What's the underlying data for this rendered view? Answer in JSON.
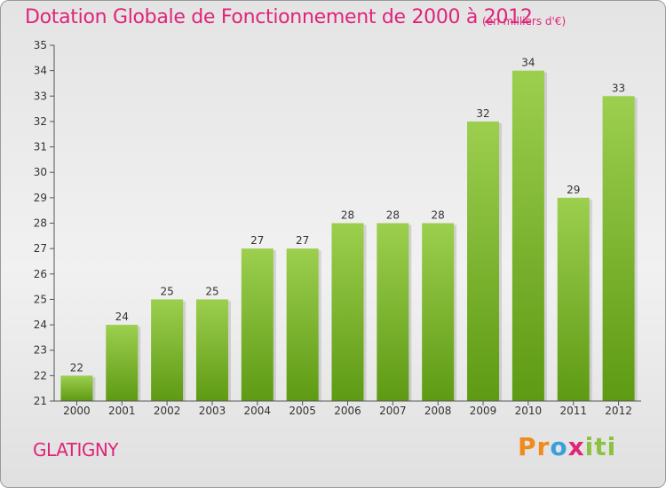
{
  "title": "Dotation Globale de Fonctionnement de 2000 à 2012",
  "subtitle": "(en milliers d'€)",
  "commune": "GLATIGNY",
  "brand": {
    "letters": [
      "Pr",
      "o",
      "x",
      "iti"
    ]
  },
  "colors": {
    "bar_top": "#9ccf4e",
    "bar_bottom": "#5e9a14",
    "title": "#e0247a",
    "axis": "#555555"
  },
  "chart_data": {
    "type": "bar",
    "categories": [
      "2000",
      "2001",
      "2002",
      "2003",
      "2004",
      "2005",
      "2006",
      "2007",
      "2008",
      "2009",
      "2010",
      "2011",
      "2012"
    ],
    "values": [
      22,
      24,
      25,
      25,
      27,
      27,
      28,
      28,
      28,
      32,
      34,
      29,
      33
    ],
    "yticks": [
      21,
      22,
      23,
      24,
      25,
      26,
      27,
      28,
      29,
      30,
      31,
      32,
      33,
      34,
      35
    ],
    "ylim": [
      21,
      35
    ],
    "grid": false,
    "legend": "none"
  }
}
